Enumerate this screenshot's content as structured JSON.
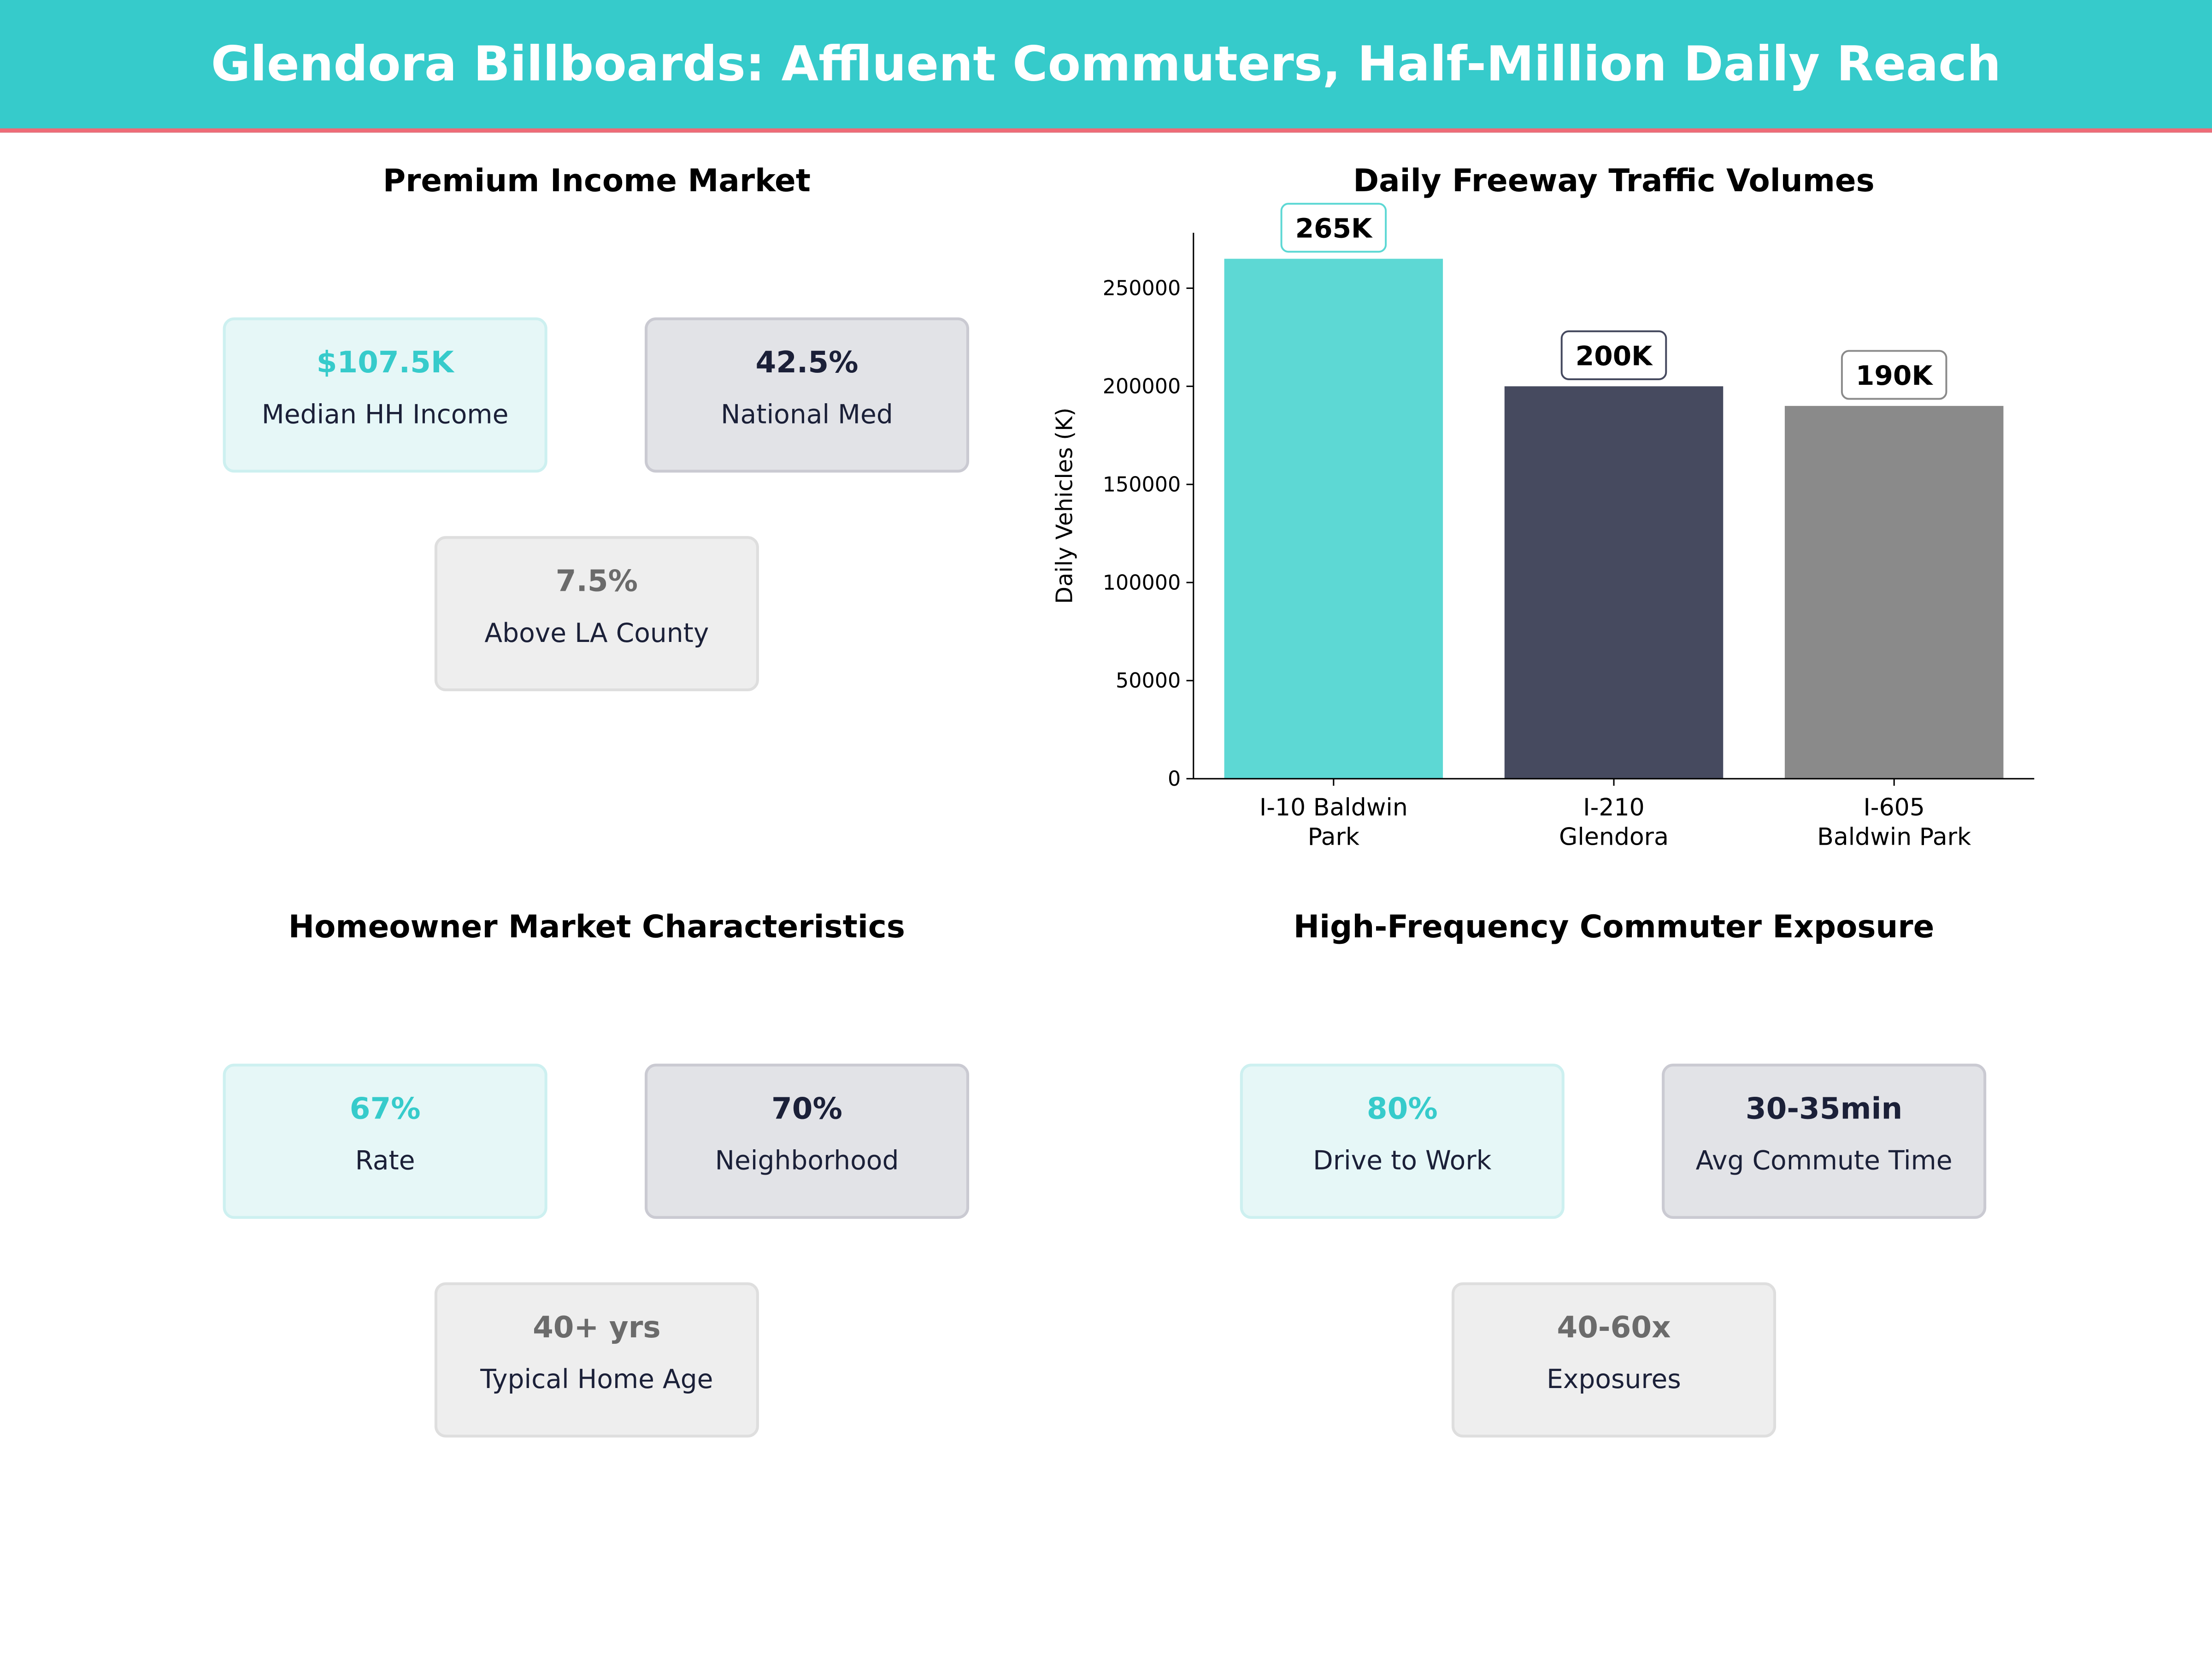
{
  "header": {
    "title": "Glendora Billboards: Affluent Commuters, Half-Million Daily Reach"
  },
  "panels": {
    "income": {
      "title": "Premium Income Market",
      "cards": [
        {
          "value": "$107.5K",
          "label": "Median HH Income"
        },
        {
          "value": "42.5%",
          "label": "National Med"
        },
        {
          "value": "7.5%",
          "label": "Above LA County"
        }
      ]
    },
    "homeowner": {
      "title": "Homeowner Market Characteristics",
      "cards": [
        {
          "value": "67%",
          "label": "Rate"
        },
        {
          "value": "70%",
          "label": "Neighborhood"
        },
        {
          "value": "40+ yrs",
          "label": "Typical Home Age"
        }
      ]
    },
    "commuter": {
      "title": "High-Frequency Commuter Exposure",
      "cards": [
        {
          "value": "80%",
          "label": "Drive to Work"
        },
        {
          "value": "30-35min",
          "label": "Avg Commute Time"
        },
        {
          "value": "40-60x",
          "label": "Exposures"
        }
      ]
    }
  },
  "chart_data": {
    "type": "bar",
    "title": "Daily Freeway Traffic Volumes",
    "xlabel": "",
    "ylabel": "Daily Vehicles (K)",
    "categories": [
      [
        "I-10 Baldwin",
        "Park"
      ],
      [
        "I-210",
        "Glendora"
      ],
      [
        "I-605",
        "Baldwin Park"
      ]
    ],
    "values": [
      265000,
      200000,
      190000
    ],
    "data_labels": [
      "265K",
      "200K",
      "190K"
    ],
    "colors": [
      "#5DD8D4",
      "#464A5F",
      "#8A8A8A"
    ],
    "yticks": [
      0,
      50000,
      100000,
      150000,
      200000,
      250000
    ],
    "ylim": [
      0,
      278250
    ],
    "grid": false
  }
}
